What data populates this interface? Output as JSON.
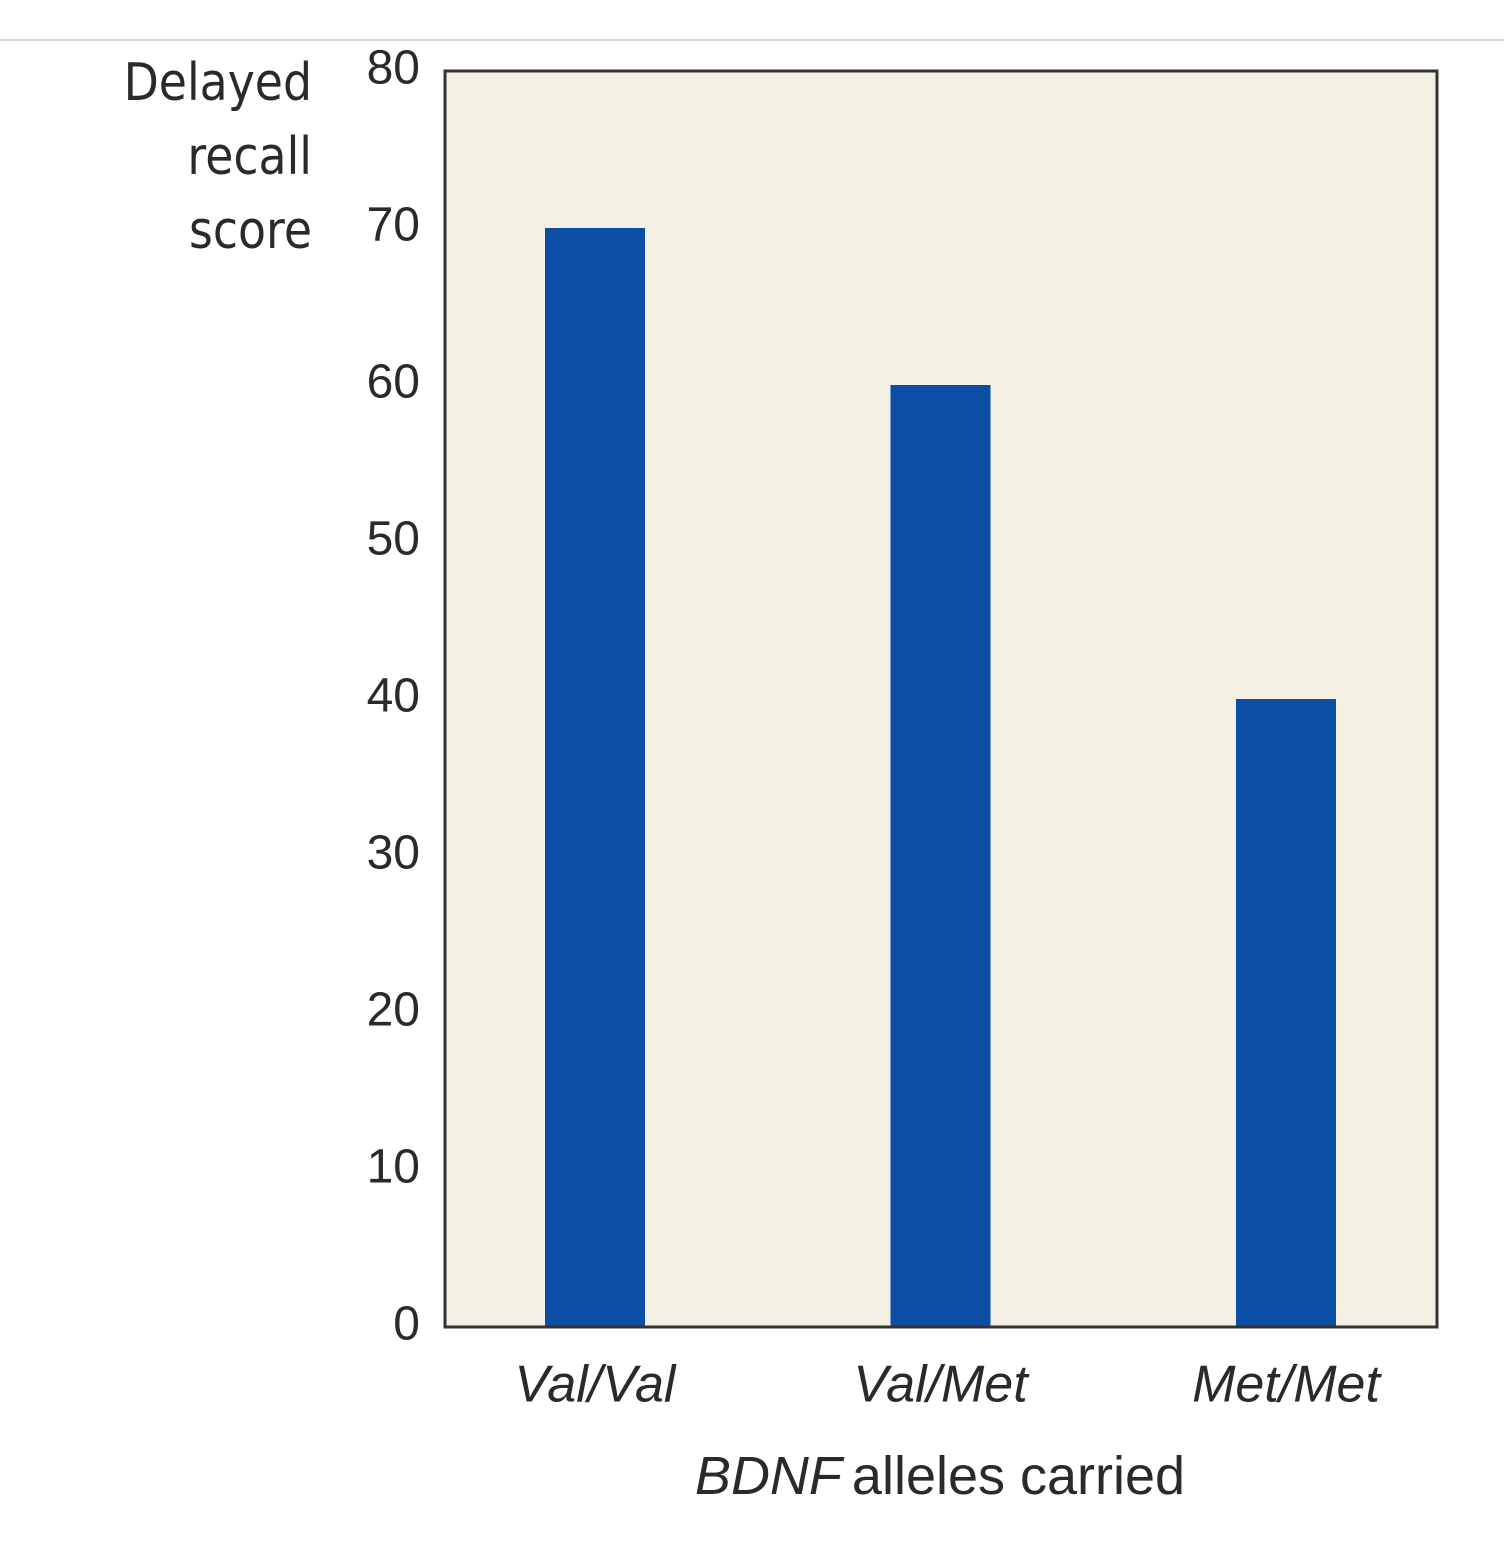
{
  "chart_data": {
    "type": "bar",
    "ylabel": "Delayed recall score",
    "xlabel": {
      "gene": "BDNF",
      "text": "alleles carried"
    },
    "categories": [
      "Val/Val",
      "Val/Met",
      "Met/Met"
    ],
    "values": [
      70,
      60,
      40
    ],
    "color": "#0a4fa3",
    "background": "#f3efe3",
    "ylim": [
      0,
      80
    ],
    "yticks": [
      0,
      10,
      20,
      30,
      40,
      50,
      60,
      70,
      80
    ],
    "grid": false
  }
}
